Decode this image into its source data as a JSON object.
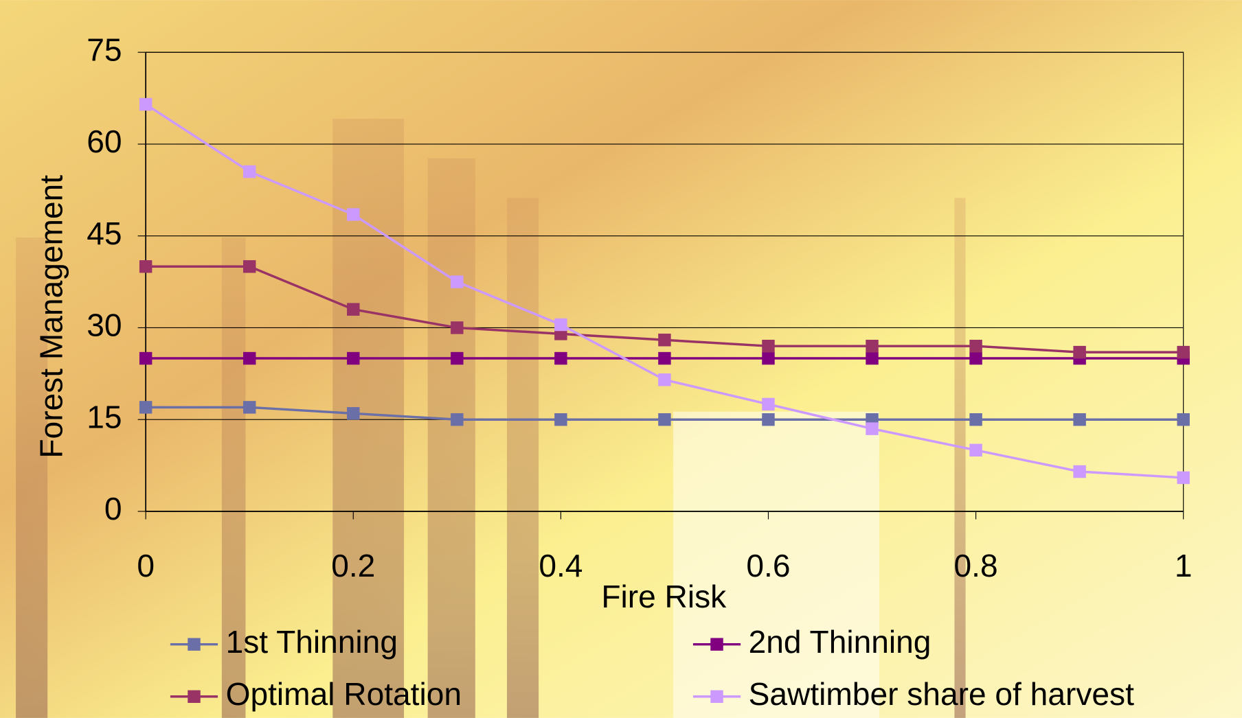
{
  "chart_data": {
    "type": "line",
    "x_label": "Fire Risk",
    "y_label": "Forest Management",
    "x": [
      0,
      0.1,
      0.2,
      0.3,
      0.4,
      0.5,
      0.6,
      0.7,
      0.8,
      0.9,
      1
    ],
    "series": [
      {
        "name": "1st Thinning",
        "color": "#6b6fa8",
        "values": [
          17,
          17,
          16,
          15,
          15,
          15,
          15,
          15,
          15,
          15,
          15
        ]
      },
      {
        "name": "2nd Thinning",
        "color": "#800080",
        "values": [
          25,
          25,
          25,
          25,
          25,
          25,
          25,
          25,
          25,
          25,
          25
        ]
      },
      {
        "name": "Optimal Rotation",
        "color": "#993366",
        "values": [
          40,
          40,
          33,
          30,
          29,
          28,
          27,
          27,
          27,
          26,
          26
        ]
      },
      {
        "name": "Sawtimber share of harvest",
        "color": "#cc99ff",
        "values": [
          66.5,
          55.5,
          48.5,
          37.5,
          30.5,
          21.5,
          17.5,
          13.5,
          10,
          6.5,
          5.5
        ]
      }
    ],
    "xlim": [
      0,
      1
    ],
    "xticks": [
      0,
      0.2,
      0.4,
      0.6,
      0.8,
      1
    ],
    "ylim": [
      0,
      75
    ],
    "yticks": [
      0,
      15,
      30,
      45,
      60,
      75
    ],
    "grid": true,
    "legend": "bottom"
  }
}
